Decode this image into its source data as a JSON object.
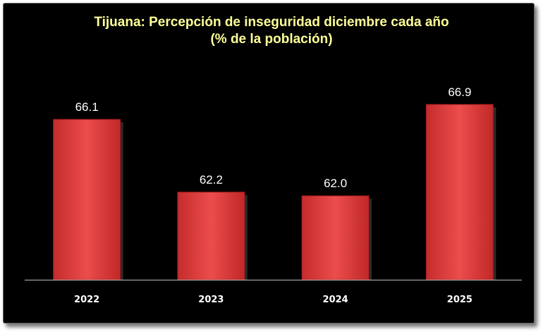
{
  "chart_data": {
    "type": "bar",
    "title": "Tijuana: Percepción de inseguridad diciembre cada año",
    "subtitle": "(% de la población)",
    "categories": [
      "2022",
      "2023",
      "2024",
      "2025"
    ],
    "values": [
      66.1,
      62.2,
      62.0,
      66.9
    ],
    "value_labels": [
      "66.1",
      "62.2",
      "62.0",
      "66.9"
    ],
    "xlabel": "",
    "ylabel": "",
    "ylim": [
      57.5,
      67.5
    ],
    "grid": false,
    "legend": "none"
  },
  "colors": {
    "background": "#000000",
    "title": "#ffff99",
    "bar_fill": "#e04040",
    "bar_edge": "#a01818",
    "axis": "#bfbfbf",
    "text": "#ffffff"
  }
}
